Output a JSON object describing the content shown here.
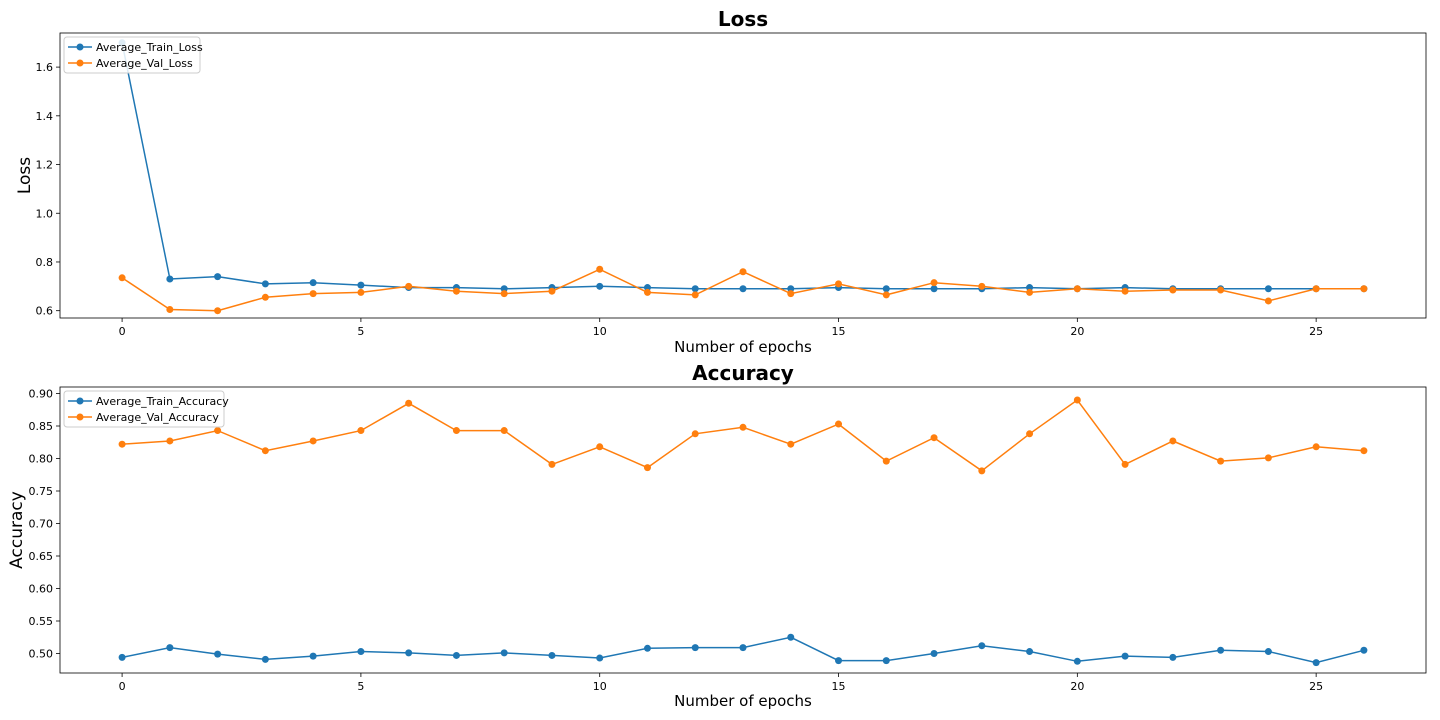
{
  "colors": {
    "train": "#1f77b4",
    "val": "#ff7f0e",
    "axis": "#000000",
    "legend_border": "#cccccc"
  },
  "chart_data": [
    {
      "type": "line",
      "title": "Loss",
      "xlabel": "Number of epochs",
      "ylabel": "Loss",
      "xlim": [
        -1.3,
        27.3
      ],
      "ylim": [
        0.57,
        1.74
      ],
      "xticks": [
        0,
        5,
        10,
        15,
        20,
        25
      ],
      "yticks": [
        0.6,
        0.8,
        1.0,
        1.2,
        1.4,
        1.6
      ],
      "xtick_labels": [
        "0",
        "5",
        "10",
        "15",
        "20",
        "25"
      ],
      "ytick_labels": [
        "0.6",
        "0.8",
        "1.0",
        "1.2",
        "1.4",
        "1.6"
      ],
      "legend_position": "upper left",
      "grid": false,
      "x": [
        0,
        1,
        2,
        3,
        4,
        5,
        6,
        7,
        8,
        9,
        10,
        11,
        12,
        13,
        14,
        15,
        16,
        17,
        18,
        19,
        20,
        21,
        22,
        23,
        24,
        25,
        26
      ],
      "series": [
        {
          "name": "Average_Train_Loss",
          "color": "#1f77b4",
          "values": [
            1.7,
            0.73,
            0.74,
            0.71,
            0.715,
            0.705,
            0.695,
            0.695,
            0.69,
            0.695,
            0.7,
            0.695,
            0.69,
            0.69,
            0.69,
            0.695,
            0.69,
            0.69,
            0.69,
            0.695,
            0.69,
            0.695,
            0.69,
            0.69,
            0.69,
            0.69,
            0.69
          ]
        },
        {
          "name": "Average_Val_Loss",
          "color": "#ff7f0e",
          "values": [
            0.735,
            0.605,
            0.6,
            0.655,
            0.67,
            0.675,
            0.7,
            0.68,
            0.67,
            0.68,
            0.77,
            0.675,
            0.665,
            0.76,
            0.67,
            0.71,
            0.665,
            0.715,
            0.7,
            0.675,
            0.69,
            0.68,
            0.685,
            0.685,
            0.64,
            0.69,
            0.69
          ]
        }
      ]
    },
    {
      "type": "line",
      "title": "Accuracy",
      "xlabel": "Number of epochs",
      "ylabel": "Accuracy",
      "xlim": [
        -1.3,
        27.3
      ],
      "ylim": [
        0.47,
        0.91
      ],
      "xticks": [
        0,
        5,
        10,
        15,
        20,
        25
      ],
      "yticks": [
        0.5,
        0.55,
        0.6,
        0.65,
        0.7,
        0.75,
        0.8,
        0.85,
        0.9
      ],
      "xtick_labels": [
        "0",
        "5",
        "10",
        "15",
        "20",
        "25"
      ],
      "ytick_labels": [
        "0.50",
        "0.55",
        "0.60",
        "0.65",
        "0.70",
        "0.75",
        "0.80",
        "0.85",
        "0.90"
      ],
      "legend_position": "upper left",
      "grid": false,
      "x": [
        0,
        1,
        2,
        3,
        4,
        5,
        6,
        7,
        8,
        9,
        10,
        11,
        12,
        13,
        14,
        15,
        16,
        17,
        18,
        19,
        20,
        21,
        22,
        23,
        24,
        25,
        26
      ],
      "series": [
        {
          "name": "Average_Train_Accuracy",
          "color": "#1f77b4",
          "values": [
            0.494,
            0.509,
            0.499,
            0.491,
            0.496,
            0.503,
            0.501,
            0.497,
            0.501,
            0.497,
            0.493,
            0.508,
            0.509,
            0.509,
            0.525,
            0.489,
            0.489,
            0.5,
            0.512,
            0.503,
            0.488,
            0.496,
            0.494,
            0.505,
            0.503,
            0.486,
            0.505
          ]
        },
        {
          "name": "Average_Val_Accuracy",
          "color": "#ff7f0e",
          "values": [
            0.822,
            0.827,
            0.843,
            0.812,
            0.827,
            0.843,
            0.885,
            0.843,
            0.843,
            0.791,
            0.818,
            0.786,
            0.838,
            0.848,
            0.822,
            0.853,
            0.796,
            0.832,
            0.781,
            0.838,
            0.89,
            0.791,
            0.827,
            0.796,
            0.801,
            0.818,
            0.812
          ]
        }
      ]
    }
  ]
}
